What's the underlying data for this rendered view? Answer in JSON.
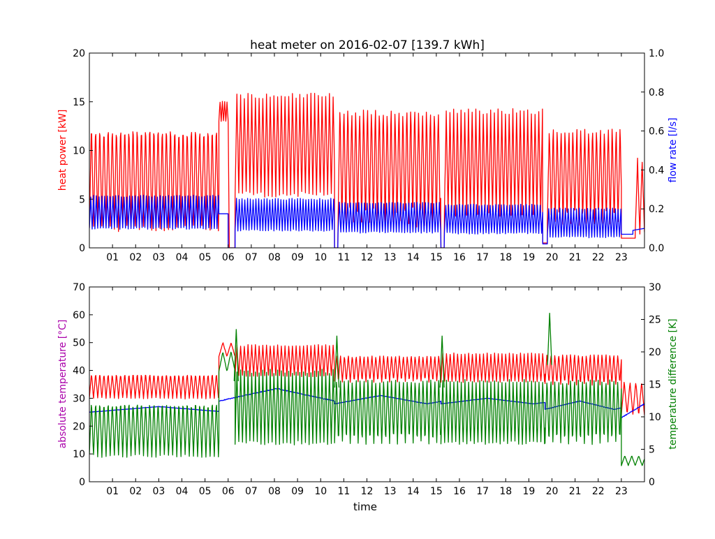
{
  "chart_data": [
    {
      "type": "line",
      "title": "heat meter on 2016-02-07 [139.7 kWh]",
      "xlabel": "",
      "ylabel": "heat power [kW]",
      "ylabel_color": "#ff0000",
      "y2label": "flow rate [l/s]",
      "y2label_color": "#0000ff",
      "xlim": [
        0,
        24
      ],
      "ylim": [
        0,
        20
      ],
      "y2lim": [
        0,
        1.0
      ],
      "xticks": [
        "01",
        "02",
        "03",
        "04",
        "05",
        "06",
        "07",
        "08",
        "09",
        "10",
        "11",
        "12",
        "13",
        "14",
        "15",
        "16",
        "17",
        "18",
        "19",
        "20",
        "21",
        "22",
        "23"
      ],
      "yticks": [
        "0",
        "5",
        "10",
        "15",
        "20"
      ],
      "y2ticks": [
        "0.0",
        "0.2",
        "0.4",
        "0.6",
        "0.8",
        "1.0"
      ],
      "grid": false,
      "series": [
        {
          "axis": "left",
          "color": "#ff0000",
          "segments": [
            {
              "start": 0.0,
              "end": 5.6,
              "low": 2.0,
              "high": 12.8,
              "period": 0.18
            },
            {
              "start": 5.6,
              "end": 6.0,
              "low": 13.0,
              "high": 15.0,
              "period": 0.1
            },
            {
              "start": 6.05,
              "end": 6.3,
              "low": 0.0,
              "high": 0.0,
              "period": 1.0
            },
            {
              "start": 6.3,
              "end": 10.6,
              "low": 5.5,
              "high": 15.6,
              "period": 0.16
            },
            {
              "start": 10.6,
              "end": 10.75,
              "low": 0.0,
              "high": 0.0,
              "period": 1.0
            },
            {
              "start": 10.75,
              "end": 15.2,
              "low": 2.5,
              "high": 14.5,
              "period": 0.17
            },
            {
              "start": 15.2,
              "end": 15.35,
              "low": 0.0,
              "high": 0.0,
              "period": 1.0
            },
            {
              "start": 15.35,
              "end": 19.6,
              "low": 3.5,
              "high": 14.0,
              "period": 0.16
            },
            {
              "start": 19.6,
              "end": 19.8,
              "low": 0.5,
              "high": 0.5,
              "period": 1.0
            },
            {
              "start": 19.8,
              "end": 23.0,
              "low": 2.5,
              "high": 12.5,
              "period": 0.17
            },
            {
              "start": 23.0,
              "end": 23.6,
              "low": 1.0,
              "high": 1.0,
              "period": 1.0
            },
            {
              "start": 23.6,
              "end": 24.0,
              "low": 1.5,
              "high": 9.0,
              "period": 0.2
            }
          ]
        },
        {
          "axis": "right",
          "color": "#0000ff",
          "segments": [
            {
              "start": 0.0,
              "end": 5.6,
              "low": 0.1,
              "high": 0.265,
              "period": 0.12
            },
            {
              "start": 5.6,
              "end": 6.0,
              "low": 0.175,
              "high": 0.175,
              "period": 1.0
            },
            {
              "start": 6.0,
              "end": 6.3,
              "low": 0.0,
              "high": 0.0,
              "period": 1.0
            },
            {
              "start": 6.3,
              "end": 10.6,
              "low": 0.09,
              "high": 0.25,
              "period": 0.12
            },
            {
              "start": 10.6,
              "end": 10.75,
              "low": 0.0,
              "high": 0.0,
              "period": 1.0
            },
            {
              "start": 10.75,
              "end": 15.2,
              "low": 0.08,
              "high": 0.23,
              "period": 0.12
            },
            {
              "start": 15.2,
              "end": 15.35,
              "low": 0.0,
              "high": 0.0,
              "period": 1.0
            },
            {
              "start": 15.35,
              "end": 19.6,
              "low": 0.075,
              "high": 0.22,
              "period": 0.12
            },
            {
              "start": 19.6,
              "end": 19.8,
              "low": 0.02,
              "high": 0.02,
              "period": 1.0
            },
            {
              "start": 19.8,
              "end": 23.0,
              "low": 0.055,
              "high": 0.2,
              "period": 0.12
            },
            {
              "start": 23.0,
              "end": 23.5,
              "low": 0.07,
              "high": 0.07,
              "period": 1.0
            },
            {
              "start": 23.5,
              "end": 24.0,
              "low": 0.09,
              "high": 0.1,
              "period": 1.0
            }
          ]
        }
      ]
    },
    {
      "type": "line",
      "title": "",
      "xlabel": "time",
      "ylabel": "absolute temperature [°C]",
      "ylabel_color": "#aa00aa",
      "y2label": "temperature difference [K]",
      "y2label_color": "#008000",
      "xlim": [
        0,
        24
      ],
      "ylim": [
        0,
        70
      ],
      "y2lim": [
        0,
        30
      ],
      "xticks": [
        "01",
        "02",
        "03",
        "04",
        "05",
        "06",
        "07",
        "08",
        "09",
        "10",
        "11",
        "12",
        "13",
        "14",
        "15",
        "16",
        "17",
        "18",
        "19",
        "20",
        "21",
        "22",
        "23"
      ],
      "yticks": [
        "0",
        "10",
        "20",
        "30",
        "40",
        "50",
        "60",
        "70"
      ],
      "y2ticks": [
        "0",
        "5",
        "10",
        "15",
        "20",
        "25",
        "30"
      ],
      "grid": false,
      "series": [
        {
          "axis": "left",
          "color": "#ff0000",
          "segments": [
            {
              "start": 0.0,
              "end": 5.6,
              "low": 30.0,
              "high": 39.0,
              "period": 0.18
            },
            {
              "start": 5.6,
              "end": 6.3,
              "low": 45.0,
              "high": 50.0,
              "period": 0.35
            },
            {
              "start": 6.3,
              "end": 10.6,
              "low": 38.0,
              "high": 49.0,
              "period": 0.16
            },
            {
              "start": 10.6,
              "end": 15.2,
              "low": 36.0,
              "high": 45.5,
              "period": 0.17
            },
            {
              "start": 15.2,
              "end": 19.7,
              "low": 36.0,
              "high": 46.0,
              "period": 0.16
            },
            {
              "start": 19.7,
              "end": 23.0,
              "low": 35.0,
              "high": 46.0,
              "period": 0.17
            },
            {
              "start": 23.0,
              "end": 24.0,
              "low": 24.0,
              "high": 36.0,
              "period": 0.25
            }
          ]
        },
        {
          "axis": "left",
          "color": "#0000ff",
          "segments": [
            {
              "start": 0.0,
              "end": 5.6,
              "low": 25.0,
              "high": 27.0,
              "period": 6.0
            },
            {
              "start": 5.6,
              "end": 10.6,
              "low": 29.0,
              "high": 33.5,
              "period": 5.0
            },
            {
              "start": 10.6,
              "end": 15.2,
              "low": 28.0,
              "high": 31.0,
              "period": 4.0
            },
            {
              "start": 15.2,
              "end": 19.7,
              "low": 28.0,
              "high": 30.0,
              "period": 4.0
            },
            {
              "start": 19.7,
              "end": 23.0,
              "low": 26.0,
              "high": 29.0,
              "period": 3.0
            },
            {
              "start": 23.0,
              "end": 24.0,
              "low": 23.0,
              "high": 28.0,
              "period": 2.0
            }
          ]
        },
        {
          "axis": "right",
          "color": "#008000",
          "segments": [
            {
              "start": 0.0,
              "end": 5.6,
              "low": 4.0,
              "high": 12.5,
              "period": 0.18
            },
            {
              "start": 5.6,
              "end": 6.3,
              "low": 17.0,
              "high": 20.0,
              "period": 0.35
            },
            {
              "start": 6.3,
              "end": 10.6,
              "low": 6.0,
              "high": 17.0,
              "period": 0.16
            },
            {
              "start": 10.6,
              "end": 15.2,
              "low": 6.0,
              "high": 16.0,
              "period": 0.17
            },
            {
              "start": 15.2,
              "end": 19.7,
              "low": 6.0,
              "high": 15.5,
              "period": 0.16
            },
            {
              "start": 19.7,
              "end": 23.0,
              "low": 6.0,
              "high": 16.0,
              "period": 0.17
            },
            {
              "start": 23.0,
              "end": 24.0,
              "low": 2.5,
              "high": 4.0,
              "period": 0.3
            }
          ]
        }
      ],
      "peaks": [
        {
          "x": 6.35,
          "y": 23.5,
          "axis": "right",
          "color": "#008000"
        },
        {
          "x": 10.7,
          "y": 22.5,
          "axis": "right",
          "color": "#008000"
        },
        {
          "x": 15.25,
          "y": 22.5,
          "axis": "right",
          "color": "#008000"
        },
        {
          "x": 19.9,
          "y": 26.0,
          "axis": "right",
          "color": "#008000"
        }
      ]
    }
  ]
}
